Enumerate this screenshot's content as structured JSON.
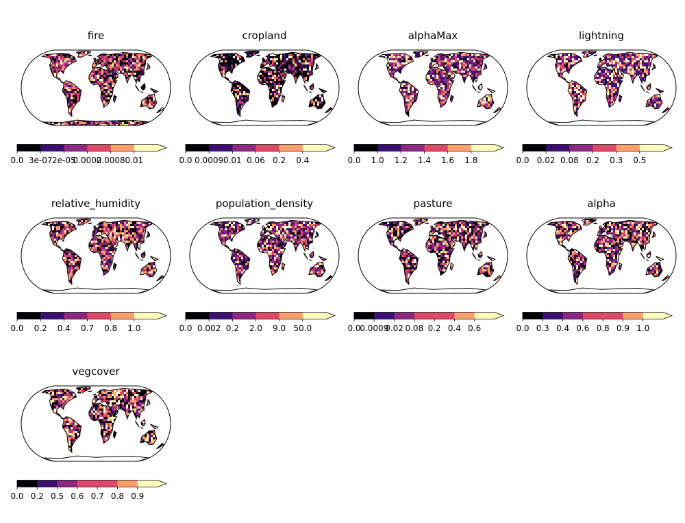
{
  "figure": {
    "colormap": [
      "#000004",
      "#3b0f70",
      "#8c2981",
      "#de4968",
      "#fe9f6d",
      "#fcfdbf"
    ],
    "coast_color": "#000000",
    "ocean_color": "#ffffff"
  },
  "panels": [
    {
      "title": "fire",
      "ticks": [
        "0.0",
        "3e-07",
        "2e-05",
        "0.0002",
        "0.0008",
        "0.01"
      ],
      "mix": [
        0.25,
        0.1,
        0.2,
        0.2,
        0.15,
        0.1
      ],
      "antarctica_filled": true
    },
    {
      "title": "cropland",
      "ticks": [
        "0.0",
        "0.0009",
        "0.01",
        "0.06",
        "0.2",
        "0.4"
      ],
      "mix": [
        0.45,
        0.15,
        0.12,
        0.1,
        0.08,
        0.1
      ],
      "antarctica_filled": false
    },
    {
      "title": "alphaMax",
      "ticks": [
        "0.0",
        "1.0",
        "1.2",
        "1.4",
        "1.6",
        "1.8"
      ],
      "mix": [
        0.05,
        0.25,
        0.25,
        0.15,
        0.12,
        0.18
      ],
      "antarctica_filled": false
    },
    {
      "title": "lightning",
      "ticks": [
        "0.0",
        "0.02",
        "0.08",
        "0.2",
        "0.3",
        "0.5"
      ],
      "mix": [
        0.05,
        0.3,
        0.2,
        0.15,
        0.1,
        0.2
      ],
      "antarctica_filled": false
    },
    {
      "title": "relative_humidity",
      "ticks": [
        "0.0",
        "0.2",
        "0.4",
        "0.7",
        "0.8",
        "1.0"
      ],
      "mix": [
        0.2,
        0.1,
        0.25,
        0.15,
        0.2,
        0.1
      ],
      "antarctica_filled": false
    },
    {
      "title": "population_density",
      "ticks": [
        "0.0",
        "0.002",
        "0.2",
        "2.0",
        "9.0",
        "50.0"
      ],
      "mix": [
        0.1,
        0.25,
        0.2,
        0.15,
        0.15,
        0.15
      ],
      "antarctica_filled": false
    },
    {
      "title": "pasture",
      "ticks": [
        "0.0",
        "0.0009",
        "0.02",
        "0.08",
        "0.2",
        "0.4",
        "0.6"
      ],
      "mix": [
        0.25,
        0.15,
        0.15,
        0.15,
        0.15,
        0.15
      ],
      "antarctica_filled": false
    },
    {
      "title": "alpha",
      "ticks": [
        "0.0",
        "0.3",
        "0.4",
        "0.6",
        "0.8",
        "0.9",
        "1.0"
      ],
      "mix": [
        0.2,
        0.15,
        0.2,
        0.15,
        0.15,
        0.15
      ],
      "antarctica_filled": false
    },
    {
      "title": "vegcover",
      "ticks": [
        "0.0",
        "0.2",
        "0.5",
        "0.6",
        "0.7",
        "0.8",
        "0.9"
      ],
      "mix": [
        0.25,
        0.1,
        0.15,
        0.15,
        0.15,
        0.2
      ],
      "antarctica_filled": false
    }
  ]
}
